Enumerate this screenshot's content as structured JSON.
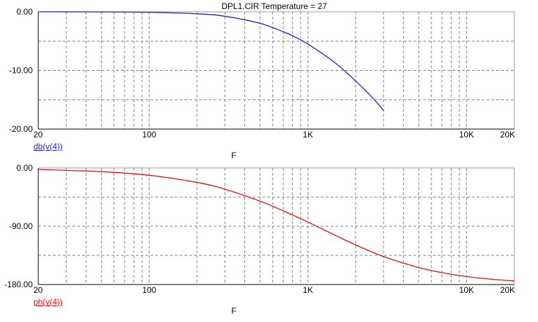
{
  "title": "DPL1.CIR Temperature = 27",
  "chart_data": [
    {
      "type": "line",
      "xscale": "log",
      "xlim": [
        20,
        20000
      ],
      "ylim": [
        -20,
        0
      ],
      "x_ticks": [
        {
          "value": 20,
          "label": "20"
        },
        {
          "value": 100,
          "label": "100"
        },
        {
          "value": 1000,
          "label": "1K"
        },
        {
          "value": 10000,
          "label": "10K"
        },
        {
          "value": 20000,
          "label": "20K"
        }
      ],
      "y_ticks": [
        {
          "value": 0,
          "label": "0.00"
        },
        {
          "value": -10,
          "label": "-10.00"
        },
        {
          "value": -20,
          "label": "-20.00"
        }
      ],
      "y_minor": [
        -5,
        -15
      ],
      "xlabel": "F",
      "legend": "db(v(4))",
      "legend_color": "#1f1fcf",
      "grid": true,
      "series": [
        {
          "color": "#1f1fcf",
          "x": [
            20,
            50,
            100,
            200,
            300,
            500,
            700,
            800,
            1000,
            1500,
            2000,
            2500,
            3000
          ],
          "y": [
            0,
            -0.02,
            -0.09,
            -0.34,
            -0.76,
            -1.97,
            -3.4,
            -4.1,
            -5.5,
            -8.8,
            -11.8,
            -14.4,
            -16.8
          ]
        }
      ]
    },
    {
      "type": "line",
      "xscale": "log",
      "xlim": [
        20,
        20000
      ],
      "ylim": [
        -180,
        0
      ],
      "x_ticks": [
        {
          "value": 20,
          "label": "20"
        },
        {
          "value": 100,
          "label": "100"
        },
        {
          "value": 1000,
          "label": "1K"
        },
        {
          "value": 10000,
          "label": "10K"
        },
        {
          "value": 20000,
          "label": "20K"
        }
      ],
      "y_ticks": [
        {
          "value": 0,
          "label": "0.00"
        },
        {
          "value": -90,
          "label": "-90.00"
        },
        {
          "value": -180,
          "label": "-180.00"
        }
      ],
      "y_minor": [
        -45,
        -135
      ],
      "xlabel": "F",
      "legend": "ph(v(4))",
      "legend_color": "#ff0000",
      "grid": true,
      "series": [
        {
          "color": "#e01010",
          "x": [
            20,
            50,
            100,
            200,
            300,
            500,
            700,
            1000,
            1500,
            2000,
            3000,
            5000,
            7000,
            10000,
            15000,
            20000
          ],
          "y": [
            -2.3,
            -5.7,
            -11.3,
            -22.3,
            -32.8,
            -51.3,
            -66.3,
            -83.5,
            -104.4,
            -118.8,
            -136.9,
            -153.8,
            -161.6,
            -167.7,
            -172.2,
            -174.3
          ]
        }
      ]
    }
  ]
}
